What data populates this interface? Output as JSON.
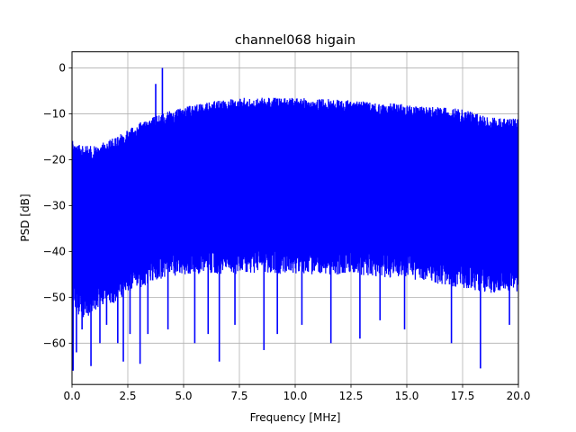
{
  "chart_data": {
    "type": "line",
    "title": "channel068 higain",
    "xlabel": "Frequency [MHz]",
    "ylabel": "PSD [dB]",
    "xlim": [
      0,
      20
    ],
    "ylim": [
      -69,
      3.5
    ],
    "xticks": [
      0,
      2.5,
      5,
      7.5,
      10,
      12.5,
      15,
      17.5,
      20
    ],
    "xtick_labels": [
      "0.0",
      "2.5",
      "5.0",
      "7.5",
      "10.0",
      "12.5",
      "15.0",
      "17.5",
      "20.0"
    ],
    "yticks": [
      0,
      -10,
      -20,
      -30,
      -40,
      -50,
      -60
    ],
    "ytick_labels": [
      "0",
      "−10",
      "−20",
      "−30",
      "−40",
      "−50",
      "−60"
    ],
    "grid": true,
    "legend": "none",
    "series": [
      {
        "color": "#0000ff",
        "envelope": {
          "x": [
            0.0,
            0.1,
            0.5,
            1.0,
            2.0,
            2.5,
            3.0,
            3.5,
            4.0,
            5.0,
            6.0,
            7.5,
            10.0,
            12.5,
            15.0,
            17.5,
            18.5,
            19.5,
            20.0
          ],
          "upper": [
            -15,
            -16.5,
            -17,
            -17,
            -15,
            -13.5,
            -12,
            -11,
            -10,
            -8.5,
            -7.5,
            -6.5,
            -6.5,
            -7.0,
            -8.0,
            -9.0,
            -10.5,
            -11.0,
            -11.0
          ],
          "lower": [
            -48,
            -50,
            -52,
            -50,
            -48,
            -46,
            -45,
            -44,
            -43,
            -42,
            -42,
            -42,
            -42,
            -42,
            -43,
            -45,
            -46,
            -46,
            -46
          ]
        },
        "peaks": [
          {
            "x": 3.75,
            "y": -3.5
          },
          {
            "x": 4.05,
            "y": 0.0
          }
        ],
        "dips": [
          {
            "x": 0.05,
            "y": -66
          },
          {
            "x": 0.2,
            "y": -62
          },
          {
            "x": 0.45,
            "y": -57
          },
          {
            "x": 0.85,
            "y": -65
          },
          {
            "x": 1.25,
            "y": -60
          },
          {
            "x": 1.55,
            "y": -56
          },
          {
            "x": 2.05,
            "y": -60
          },
          {
            "x": 2.3,
            "y": -64
          },
          {
            "x": 2.6,
            "y": -58
          },
          {
            "x": 3.05,
            "y": -64.5
          },
          {
            "x": 3.4,
            "y": -58
          },
          {
            "x": 4.3,
            "y": -57
          },
          {
            "x": 5.5,
            "y": -60
          },
          {
            "x": 6.1,
            "y": -58
          },
          {
            "x": 6.6,
            "y": -64
          },
          {
            "x": 7.3,
            "y": -56
          },
          {
            "x": 8.6,
            "y": -61.5
          },
          {
            "x": 9.2,
            "y": -58
          },
          {
            "x": 10.3,
            "y": -56
          },
          {
            "x": 11.6,
            "y": -60
          },
          {
            "x": 12.9,
            "y": -59
          },
          {
            "x": 13.8,
            "y": -55
          },
          {
            "x": 14.9,
            "y": -57
          },
          {
            "x": 17.0,
            "y": -60
          },
          {
            "x": 18.3,
            "y": -65.5
          },
          {
            "x": 19.6,
            "y": -56
          }
        ]
      }
    ]
  }
}
